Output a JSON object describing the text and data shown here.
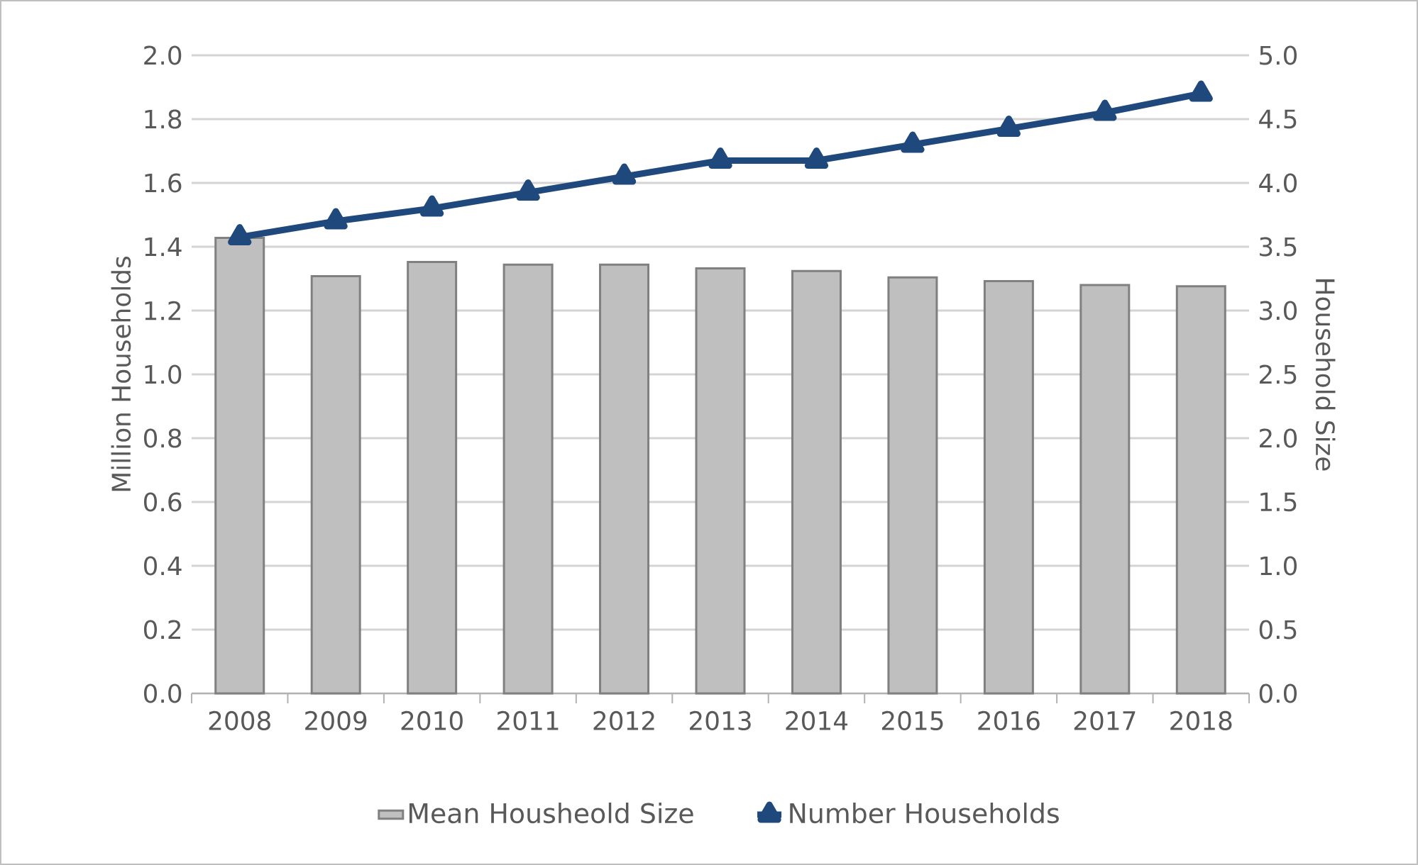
{
  "chart_data": {
    "type": "bar",
    "categories": [
      "2008",
      "2009",
      "2010",
      "2011",
      "2012",
      "2013",
      "2014",
      "2015",
      "2016",
      "2017",
      "2018"
    ],
    "series": [
      {
        "name": "Mean Housheold Size",
        "axis": "y2",
        "color": "#bfbfbf",
        "values": [
          3.57,
          3.27,
          3.38,
          3.36,
          3.36,
          3.33,
          3.31,
          3.26,
          3.23,
          3.2,
          3.19
        ]
      },
      {
        "name": "Number Households",
        "type": "line",
        "color": "#1f497d",
        "marker": "triangle",
        "values": [
          1.43,
          1.48,
          1.52,
          1.57,
          1.62,
          1.67,
          1.67,
          1.72,
          1.77,
          1.82,
          1.88
        ]
      }
    ],
    "ylabel": "Million Households",
    "y2label": "Household Size",
    "ylim": [
      0,
      2
    ],
    "yticks": [
      {
        "value": 0,
        "label": "0.0"
      },
      {
        "value": 0.2,
        "label": "0.2"
      },
      {
        "value": 0.4,
        "label": "0.4"
      },
      {
        "value": 0.6,
        "label": "0.6"
      },
      {
        "value": 0.8,
        "label": "0.8"
      },
      {
        "value": 1,
        "label": "1.0"
      },
      {
        "value": 1.2,
        "label": "1.2"
      },
      {
        "value": 1.4,
        "label": "1.4"
      },
      {
        "value": 1.6,
        "label": "1.6"
      },
      {
        "value": 1.8,
        "label": "1.8"
      },
      {
        "value": 2,
        "label": "2.0"
      }
    ],
    "y2lim": [
      0,
      5
    ],
    "y2ticks": [
      {
        "value": 0,
        "label": "0.0"
      },
      {
        "value": 0.5,
        "label": "0.5"
      },
      {
        "value": 1,
        "label": "1.0"
      },
      {
        "value": 1.5,
        "label": "1.5"
      },
      {
        "value": 2,
        "label": "2.0"
      },
      {
        "value": 2.5,
        "label": "2.5"
      },
      {
        "value": 3,
        "label": "3.0"
      },
      {
        "value": 3.5,
        "label": "3.5"
      },
      {
        "value": 4,
        "label": "4.0"
      },
      {
        "value": 4.5,
        "label": "4.5"
      },
      {
        "value": 5,
        "label": "5.0"
      }
    ],
    "grid": "y",
    "legend": "bottom"
  }
}
